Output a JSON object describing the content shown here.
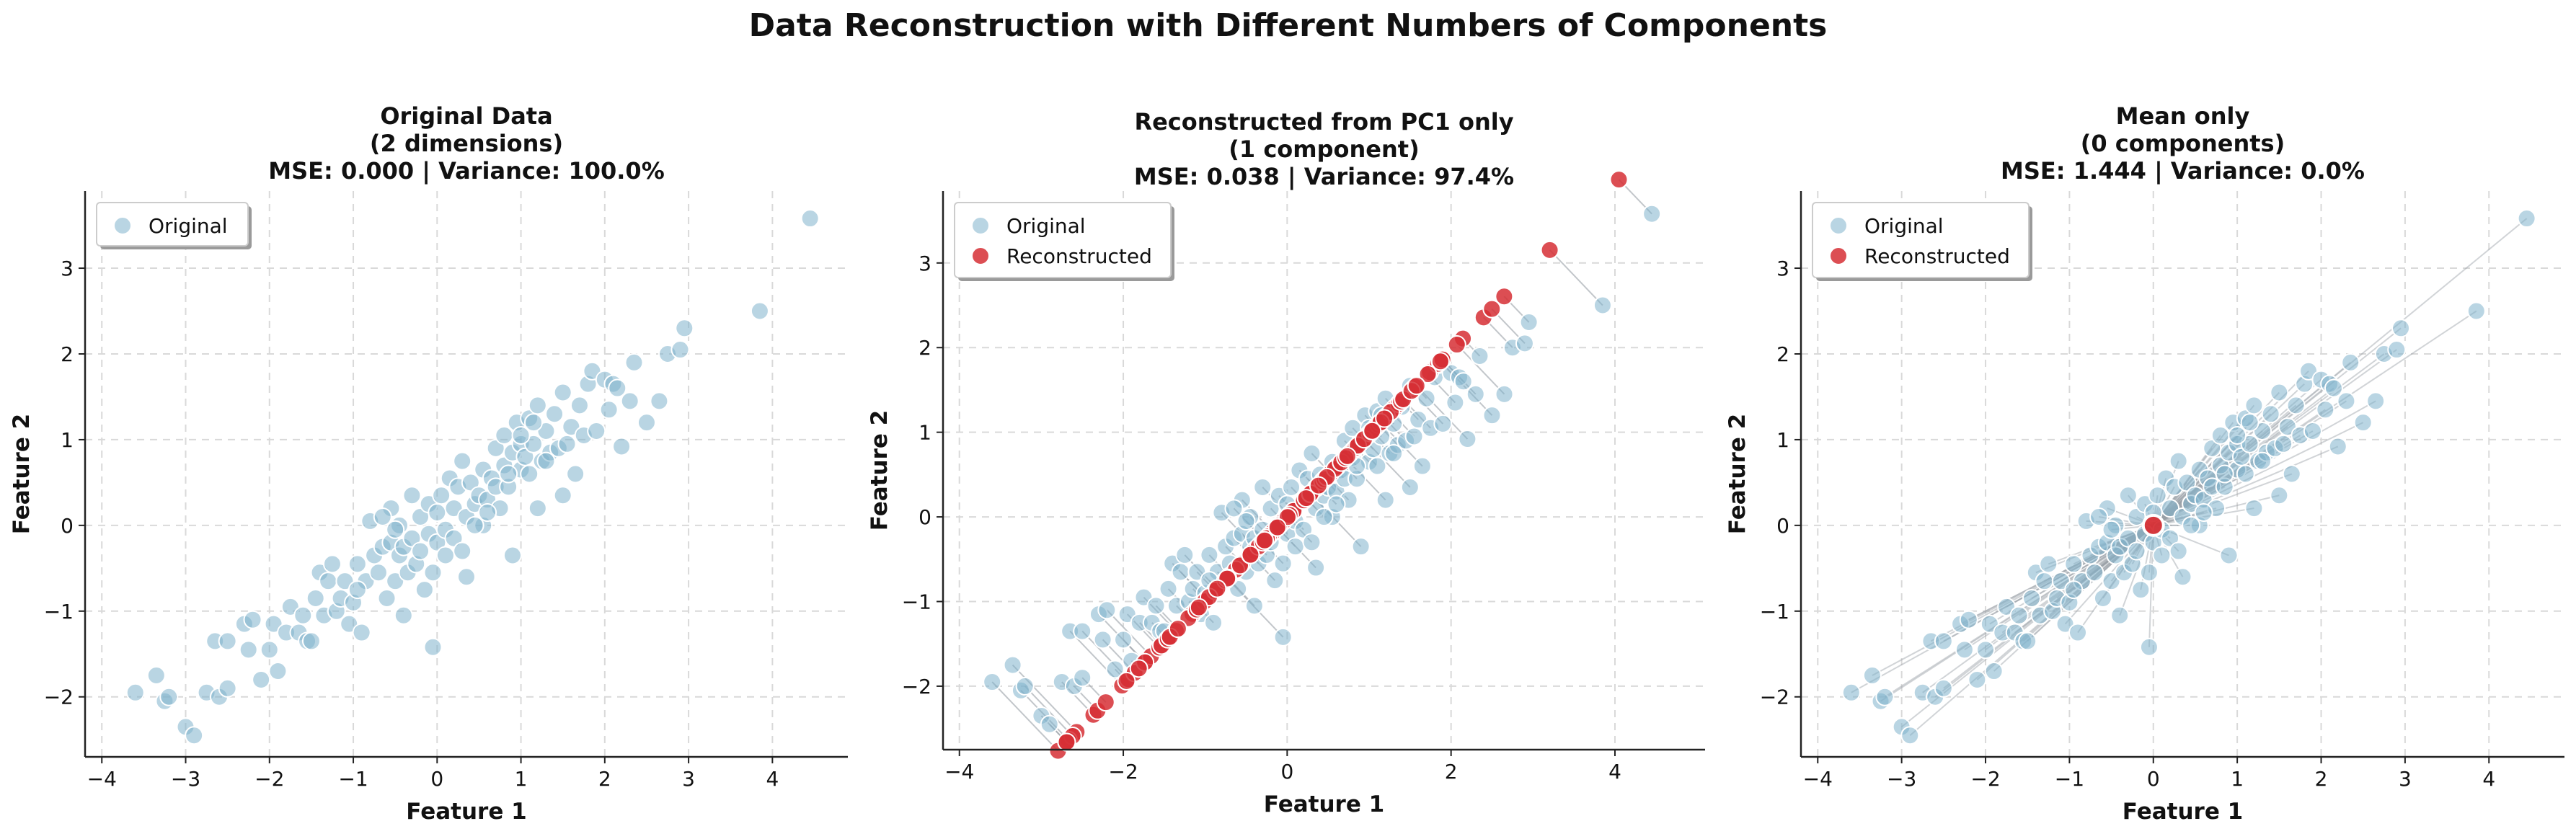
{
  "figure_title": "Data Reconstruction with Different Numbers of Components",
  "colors": {
    "original": "#7fb3cc",
    "original_edge": "#ffffff",
    "reconstructed": "#d62f35",
    "line": "#9aa0a6",
    "grid": "#d9d9d9"
  },
  "chart_data": [
    {
      "type": "scatter",
      "title": [
        "Original Data",
        "(2 dimensions)",
        "MSE: 0.000 | Variance: 100.0%"
      ],
      "xlabel": "Feature 1",
      "ylabel": "Feature 2",
      "xlim": [
        -4.2,
        4.9
      ],
      "ylim": [
        -2.7,
        3.9
      ],
      "xticks": [
        -4,
        -3,
        -2,
        -1,
        0,
        1,
        2,
        3,
        4
      ],
      "yticks": [
        -2,
        -1,
        0,
        1,
        2,
        3
      ],
      "xtick_labels": [
        "−4",
        "−3",
        "−2",
        "−1",
        "0",
        "1",
        "2",
        "3",
        "4"
      ],
      "ytick_labels": [
        "−2",
        "−1",
        "0",
        "1",
        "2",
        "3"
      ],
      "grid": true,
      "legend_position": "upper left",
      "legend": [
        "Original"
      ],
      "mode": "original"
    },
    {
      "type": "scatter",
      "title": [
        "Reconstructed from PC1 only",
        "(1 component)",
        "MSE: 0.038 | Variance: 97.4%"
      ],
      "xlabel": "Feature 1",
      "ylabel": "Feature 2",
      "xlim": [
        -4.2,
        5.1
      ],
      "ylim": [
        -2.75,
        3.85
      ],
      "xticks": [
        -4,
        -2,
        0,
        2,
        4
      ],
      "yticks": [
        -2,
        -1,
        0,
        1,
        2,
        3
      ],
      "xtick_labels": [
        "−4",
        "−2",
        "0",
        "2",
        "4"
      ],
      "ytick_labels": [
        "−2",
        "−1",
        "0",
        "1",
        "2",
        "3"
      ],
      "grid": true,
      "legend_position": "upper left",
      "legend": [
        "Original",
        "Reconstructed"
      ],
      "mode": "pc1"
    },
    {
      "type": "scatter",
      "title": [
        "Mean only",
        "(0 components)",
        "MSE: 1.444 | Variance: 0.0%"
      ],
      "xlabel": "Feature 1",
      "ylabel": "Feature 2",
      "xlim": [
        -4.2,
        4.9
      ],
      "ylim": [
        -2.7,
        3.9
      ],
      "xticks": [
        -4,
        -3,
        -2,
        -1,
        0,
        1,
        2,
        3,
        4
      ],
      "yticks": [
        -2,
        -1,
        0,
        1,
        2,
        3
      ],
      "xtick_labels": [
        "−4",
        "−3",
        "−2",
        "−1",
        "0",
        "1",
        "2",
        "3",
        "4"
      ],
      "ytick_labels": [
        "−2",
        "−1",
        "0",
        "1",
        "2",
        "3"
      ],
      "grid": true,
      "legend_position": "upper left",
      "legend": [
        "Original",
        "Reconstructed"
      ],
      "mode": "mean"
    }
  ],
  "points": [
    [
      -3.6,
      -1.95
    ],
    [
      -3.35,
      -1.75
    ],
    [
      -3.25,
      -2.05
    ],
    [
      -3.2,
      -2.0
    ],
    [
      -3.0,
      -2.35
    ],
    [
      -2.9,
      -2.45
    ],
    [
      -2.75,
      -1.95
    ],
    [
      -2.65,
      -1.35
    ],
    [
      -2.6,
      -2.0
    ],
    [
      -2.5,
      -1.35
    ],
    [
      -2.5,
      -1.9
    ],
    [
      -2.3,
      -1.15
    ],
    [
      -2.25,
      -1.45
    ],
    [
      -2.2,
      -1.1
    ],
    [
      -2.1,
      -1.8
    ],
    [
      -2.0,
      -1.45
    ],
    [
      -1.95,
      -1.15
    ],
    [
      -1.9,
      -1.7
    ],
    [
      -1.8,
      -1.25
    ],
    [
      -1.75,
      -0.95
    ],
    [
      -1.65,
      -1.25
    ],
    [
      -1.55,
      -1.35
    ],
    [
      -1.5,
      -1.35
    ],
    [
      -1.45,
      -0.85
    ],
    [
      -1.4,
      -0.55
    ],
    [
      -1.35,
      -1.05
    ],
    [
      -1.3,
      -0.65
    ],
    [
      -1.25,
      -0.45
    ],
    [
      -1.2,
      -1.0
    ],
    [
      -1.15,
      -0.85
    ],
    [
      -1.1,
      -0.65
    ],
    [
      -1.05,
      -1.15
    ],
    [
      -1.0,
      -0.9
    ],
    [
      -0.95,
      -0.45
    ],
    [
      -0.9,
      -1.25
    ],
    [
      -0.85,
      -0.65
    ],
    [
      -0.8,
      0.05
    ],
    [
      -0.75,
      -0.35
    ],
    [
      -0.7,
      -0.55
    ],
    [
      -0.65,
      -0.25
    ],
    [
      -0.6,
      -0.85
    ],
    [
      -0.55,
      0.2
    ],
    [
      -0.55,
      -0.2
    ],
    [
      -0.5,
      -0.65
    ],
    [
      -0.45,
      -0.35
    ],
    [
      -0.45,
      0.0
    ],
    [
      -0.4,
      -0.25
    ],
    [
      -0.4,
      -1.05
    ],
    [
      -0.35,
      -0.55
    ],
    [
      -0.3,
      0.35
    ],
    [
      -0.3,
      -0.15
    ],
    [
      -0.25,
      -0.45
    ],
    [
      -0.2,
      0.1
    ],
    [
      -0.2,
      -0.3
    ],
    [
      -0.15,
      -0.75
    ],
    [
      -0.1,
      0.25
    ],
    [
      -0.1,
      -0.1
    ],
    [
      -0.05,
      -0.55
    ],
    [
      -0.05,
      -1.42
    ],
    [
      0.0,
      0.15
    ],
    [
      0.0,
      -0.2
    ],
    [
      0.05,
      0.35
    ],
    [
      0.1,
      -0.05
    ],
    [
      0.1,
      -0.35
    ],
    [
      0.15,
      0.55
    ],
    [
      0.2,
      0.2
    ],
    [
      0.2,
      -0.15
    ],
    [
      0.25,
      0.45
    ],
    [
      0.3,
      0.75
    ],
    [
      0.3,
      -0.3
    ],
    [
      0.35,
      0.1
    ],
    [
      0.35,
      -0.6
    ],
    [
      0.4,
      0.5
    ],
    [
      0.45,
      0.25
    ],
    [
      0.5,
      0.35
    ],
    [
      0.55,
      0.65
    ],
    [
      0.55,
      0.0
    ],
    [
      0.6,
      0.3
    ],
    [
      0.65,
      0.55
    ],
    [
      0.7,
      0.9
    ],
    [
      0.7,
      0.45
    ],
    [
      0.75,
      0.2
    ],
    [
      0.8,
      0.7
    ],
    [
      0.8,
      1.05
    ],
    [
      0.85,
      0.45
    ],
    [
      0.9,
      0.85
    ],
    [
      0.9,
      -0.35
    ],
    [
      0.95,
      1.2
    ],
    [
      1.0,
      0.65
    ],
    [
      1.0,
      0.95
    ],
    [
      1.05,
      0.8
    ],
    [
      1.1,
      1.25
    ],
    [
      1.1,
      0.6
    ],
    [
      1.15,
      0.95
    ],
    [
      1.2,
      0.2
    ],
    [
      1.2,
      1.4
    ],
    [
      1.25,
      0.75
    ],
    [
      1.3,
      1.1
    ],
    [
      1.35,
      0.85
    ],
    [
      1.4,
      1.3
    ],
    [
      1.45,
      0.9
    ],
    [
      1.5,
      1.55
    ],
    [
      1.5,
      0.35
    ],
    [
      1.55,
      0.95
    ],
    [
      1.6,
      1.15
    ],
    [
      1.65,
      0.6
    ],
    [
      1.7,
      1.4
    ],
    [
      1.75,
      1.05
    ],
    [
      1.8,
      1.65
    ],
    [
      1.85,
      1.8
    ],
    [
      1.9,
      1.1
    ],
    [
      2.0,
      1.7
    ],
    [
      2.05,
      1.35
    ],
    [
      2.1,
      1.65
    ],
    [
      2.15,
      1.6
    ],
    [
      2.2,
      0.92
    ],
    [
      2.3,
      1.45
    ],
    [
      2.35,
      1.9
    ],
    [
      2.5,
      1.2
    ],
    [
      2.65,
      1.45
    ],
    [
      2.75,
      2.0
    ],
    [
      2.9,
      2.05
    ],
    [
      2.95,
      2.3
    ],
    [
      3.85,
      2.5
    ],
    [
      4.45,
      3.58
    ],
    [
      -0.65,
      0.1
    ],
    [
      -0.5,
      -0.05
    ],
    [
      0.45,
      0.0
    ],
    [
      0.6,
      0.15
    ],
    [
      1.0,
      1.05
    ],
    [
      1.3,
      0.75
    ],
    [
      -1.6,
      -1.05
    ],
    [
      -0.95,
      -0.75
    ],
    [
      0.85,
      0.6
    ],
    [
      1.15,
      1.2
    ]
  ]
}
